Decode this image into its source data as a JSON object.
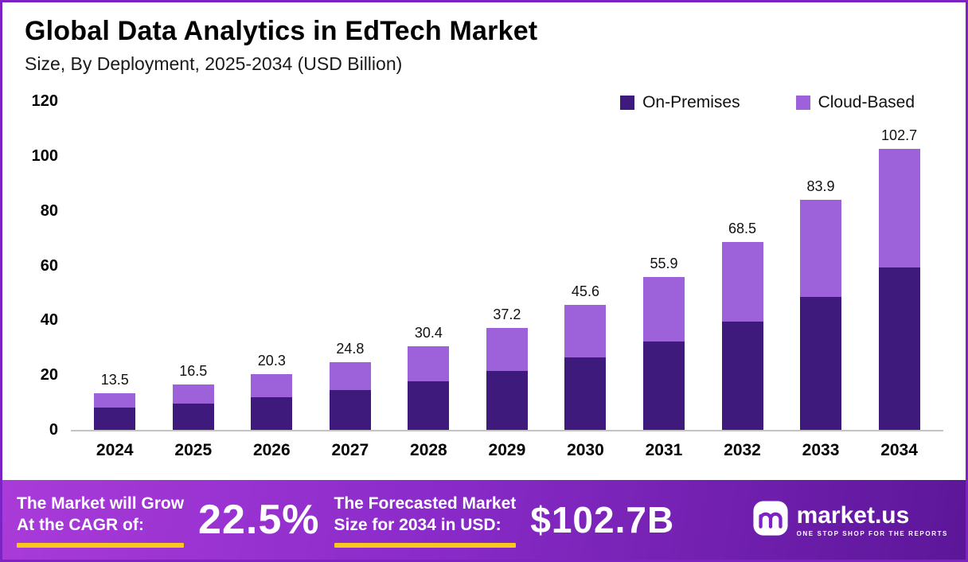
{
  "title": "Global Data Analytics in EdTech Market",
  "subtitle": "Size, By Deployment, 2025-2034 (USD Billion)",
  "chart_data": {
    "type": "bar",
    "stacked": true,
    "title": "Global Data Analytics in EdTech Market",
    "subtitle": "Size, By Deployment, 2025-2034 (USD Billion)",
    "categories": [
      "2024",
      "2025",
      "2026",
      "2027",
      "2028",
      "2029",
      "2030",
      "2031",
      "2032",
      "2033",
      "2034"
    ],
    "series": [
      {
        "name": "On-Premises",
        "color": "#3e1a7d",
        "values": [
          8.0,
          9.7,
          11.8,
          14.4,
          17.6,
          21.5,
          26.3,
          32.3,
          39.6,
          48.5,
          59.4
        ]
      },
      {
        "name": "Cloud-Based",
        "color": "#9d62d9",
        "values": [
          5.5,
          6.8,
          8.5,
          10.4,
          12.8,
          15.7,
          19.3,
          23.6,
          28.9,
          35.4,
          43.3
        ]
      }
    ],
    "totals": [
      13.5,
      16.5,
      20.3,
      24.8,
      30.4,
      37.2,
      45.6,
      55.9,
      68.5,
      83.9,
      102.7
    ],
    "ylim": [
      0,
      120
    ],
    "yticks": [
      0,
      20,
      40,
      60,
      80,
      100,
      120
    ],
    "legend_position": "top-right",
    "grid": false,
    "xlabel": "",
    "ylabel": ""
  },
  "footer": {
    "cagr_label_line1": "The Market will Grow",
    "cagr_label_line2": "At the CAGR of:",
    "cagr_value": "22.5%",
    "forecast_label_line1": "The Forecasted Market",
    "forecast_label_line2": "Size for 2034 in USD:",
    "forecast_value": "$102.7B",
    "brand_name": "market.us",
    "brand_tagline": "ONE STOP SHOP FOR THE REPORTS"
  },
  "colors": {
    "border": "#7d22c3",
    "on_premises": "#3e1a7d",
    "cloud_based": "#9d62d9",
    "footer_accent": "#f8c81c",
    "axis_line": "#c4c4c4"
  }
}
